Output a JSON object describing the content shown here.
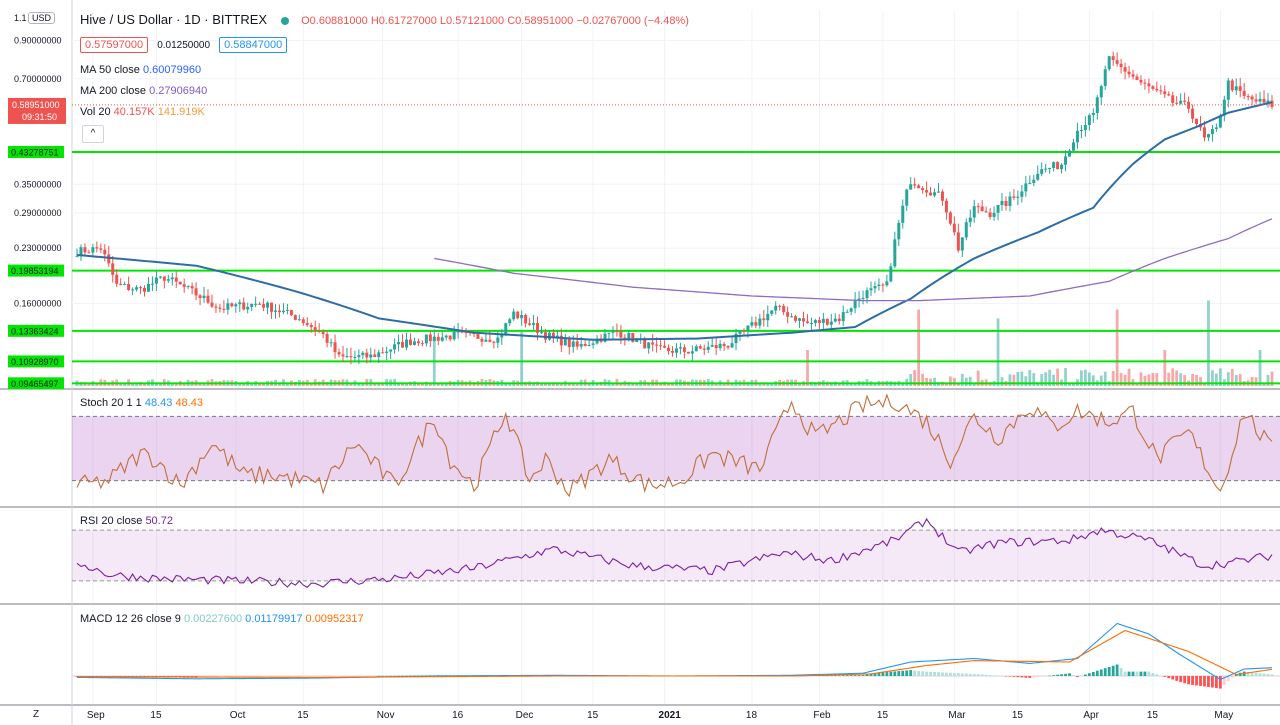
{
  "header": {
    "symbol": "Hive / US Dollar · 1D · BITTREX",
    "ohlc": "O0.60881000 H0.61727000 L0.57121000 C0.58951000 −0.02767000 (−4.48%)",
    "bid": "0.57597000",
    "spread": "0.01250000",
    "ask": "0.58847000",
    "currency": "USD",
    "scale_top": "1.1",
    "collapse": "^"
  },
  "indicators": {
    "ma50": {
      "label": "MA 50 close",
      "value": "0.60079960",
      "color": "#2962ff"
    },
    "ma200": {
      "label": "MA 200 close",
      "value": "0.27906940",
      "color": "#7e57c2"
    },
    "vol": {
      "label": "Vol 20",
      "v1": "40.157K",
      "v2": "141.919K"
    },
    "stoch": {
      "label": "Stoch 20 1 1",
      "k": "48.43",
      "d": "48.43"
    },
    "rsi": {
      "label": "RSI 20 close",
      "value": "50.72"
    },
    "macd": {
      "label": "MACD 12 26 close 9",
      "hist": "0.00227600",
      "macd": "0.01179917",
      "signal": "0.00952317"
    }
  },
  "price_axis": {
    "ticks": [
      "0.90000000",
      "0.70000000",
      "0.35000000",
      "0.29000000",
      "0.23000000",
      "0.16000000"
    ],
    "current": "0.58951000",
    "countdown": "09:31:50",
    "levels": [
      "0.43278751",
      "0.19853194",
      "0.13363424",
      "0.10928970",
      "0.09465497"
    ]
  },
  "time_axis": [
    "Sep",
    "15",
    "Oct",
    "15",
    "Nov",
    "16",
    "Dec",
    "15",
    "2021",
    "18",
    "Feb",
    "15",
    "Mar",
    "15",
    "Apr",
    "15",
    "May"
  ],
  "z_label": "Z",
  "chart_data": {
    "type": "candlestick",
    "title": "Hive / US Dollar · 1D · BITTREX",
    "x_range": [
      "Sep",
      "May"
    ],
    "y_scale": "log",
    "ylim": [
      0.093,
      1.1
    ],
    "horizontal_levels": [
      0.43278751,
      0.19853194,
      0.13363424,
      0.1092897,
      0.09465497
    ],
    "last_close": 0.58951,
    "close_anchors": [
      [
        0,
        0.225
      ],
      [
        6,
        0.23
      ],
      [
        10,
        0.18
      ],
      [
        16,
        0.175
      ],
      [
        22,
        0.19
      ],
      [
        30,
        0.17
      ],
      [
        36,
        0.155
      ],
      [
        46,
        0.16
      ],
      [
        56,
        0.145
      ],
      [
        62,
        0.13
      ],
      [
        66,
        0.112
      ],
      [
        74,
        0.113
      ],
      [
        84,
        0.125
      ],
      [
        96,
        0.13
      ],
      [
        106,
        0.127
      ],
      [
        110,
        0.15
      ],
      [
        118,
        0.13
      ],
      [
        126,
        0.12
      ],
      [
        136,
        0.133
      ],
      [
        146,
        0.118
      ],
      [
        154,
        0.117
      ],
      [
        164,
        0.122
      ],
      [
        170,
        0.138
      ],
      [
        176,
        0.155
      ],
      [
        184,
        0.14
      ],
      [
        192,
        0.145
      ],
      [
        198,
        0.17
      ],
      [
        204,
        0.18
      ],
      [
        210,
        0.36
      ],
      [
        214,
        0.34
      ],
      [
        218,
        0.32
      ],
      [
        222,
        0.23
      ],
      [
        226,
        0.3
      ],
      [
        230,
        0.29
      ],
      [
        236,
        0.32
      ],
      [
        242,
        0.38
      ],
      [
        248,
        0.4
      ],
      [
        252,
        0.5
      ],
      [
        256,
        0.55
      ],
      [
        260,
        0.79
      ],
      [
        264,
        0.74
      ],
      [
        268,
        0.68
      ],
      [
        272,
        0.64
      ],
      [
        276,
        0.6
      ],
      [
        280,
        0.58
      ],
      [
        284,
        0.47
      ],
      [
        287,
        0.5
      ],
      [
        290,
        0.68
      ],
      [
        294,
        0.62
      ],
      [
        298,
        0.6
      ],
      [
        301,
        0.59
      ]
    ],
    "ma50_anchors": [
      [
        0,
        0.22
      ],
      [
        30,
        0.205
      ],
      [
        56,
        0.172
      ],
      [
        76,
        0.145
      ],
      [
        100,
        0.132
      ],
      [
        130,
        0.126
      ],
      [
        156,
        0.127
      ],
      [
        180,
        0.132
      ],
      [
        196,
        0.137
      ],
      [
        210,
        0.165
      ],
      [
        226,
        0.215
      ],
      [
        242,
        0.255
      ],
      [
        256,
        0.3
      ],
      [
        266,
        0.4
      ],
      [
        274,
        0.47
      ],
      [
        282,
        0.51
      ],
      [
        290,
        0.56
      ],
      [
        301,
        0.6
      ]
    ],
    "ma200_anchors": [
      [
        90,
        0.215
      ],
      [
        110,
        0.195
      ],
      [
        140,
        0.178
      ],
      [
        170,
        0.168
      ],
      [
        198,
        0.163
      ],
      [
        212,
        0.163
      ],
      [
        240,
        0.168
      ],
      [
        260,
        0.185
      ],
      [
        274,
        0.215
      ],
      [
        290,
        0.245
      ],
      [
        301,
        0.279
      ]
    ],
    "volume_spikes": [
      [
        90,
        0.55
      ],
      [
        112,
        0.6
      ],
      [
        184,
        0.4
      ],
      [
        212,
        0.85
      ],
      [
        232,
        0.75
      ],
      [
        262,
        0.85
      ],
      [
        274,
        0.4
      ],
      [
        285,
        0.95
      ],
      [
        298,
        0.4
      ]
    ],
    "stoch_anchors": [
      [
        0,
        15
      ],
      [
        8,
        20
      ],
      [
        16,
        45
      ],
      [
        20,
        40
      ],
      [
        26,
        15
      ],
      [
        34,
        55
      ],
      [
        42,
        25
      ],
      [
        50,
        25
      ],
      [
        62,
        15
      ],
      [
        70,
        55
      ],
      [
        80,
        15
      ],
      [
        90,
        80
      ],
      [
        94,
        40
      ],
      [
        100,
        15
      ],
      [
        108,
        85
      ],
      [
        114,
        20
      ],
      [
        118,
        40
      ],
      [
        124,
        10
      ],
      [
        134,
        40
      ],
      [
        144,
        15
      ],
      [
        152,
        20
      ],
      [
        160,
        45
      ],
      [
        172,
        30
      ],
      [
        180,
        95
      ],
      [
        186,
        60
      ],
      [
        198,
        90
      ],
      [
        206,
        95
      ],
      [
        214,
        75
      ],
      [
        220,
        40
      ],
      [
        226,
        80
      ],
      [
        232,
        60
      ],
      [
        240,
        90
      ],
      [
        246,
        70
      ],
      [
        252,
        85
      ],
      [
        260,
        75
      ],
      [
        266,
        85
      ],
      [
        272,
        40
      ],
      [
        280,
        65
      ],
      [
        288,
        10
      ],
      [
        294,
        85
      ],
      [
        301,
        48
      ]
    ],
    "stoch_band": [
      20,
      80
    ],
    "rsi_anchors": [
      [
        0,
        45
      ],
      [
        8,
        35
      ],
      [
        20,
        32
      ],
      [
        40,
        30
      ],
      [
        60,
        28
      ],
      [
        80,
        32
      ],
      [
        100,
        40
      ],
      [
        120,
        55
      ],
      [
        140,
        42
      ],
      [
        160,
        38
      ],
      [
        178,
        52
      ],
      [
        190,
        46
      ],
      [
        206,
        62
      ],
      [
        214,
        78
      ],
      [
        222,
        52
      ],
      [
        232,
        60
      ],
      [
        250,
        62
      ],
      [
        258,
        70
      ],
      [
        270,
        62
      ],
      [
        284,
        42
      ],
      [
        292,
        45
      ],
      [
        301,
        50
      ]
    ],
    "rsi_band": [
      30,
      70
    ],
    "macd_anchors": [
      [
        0,
        -0.002
      ],
      [
        30,
        -0.004
      ],
      [
        60,
        -0.003
      ],
      [
        90,
        0.0
      ],
      [
        120,
        0.001
      ],
      [
        150,
        0.0
      ],
      [
        180,
        0.001
      ],
      [
        198,
        0.004
      ],
      [
        210,
        0.02
      ],
      [
        226,
        0.025
      ],
      [
        240,
        0.018
      ],
      [
        252,
        0.025
      ],
      [
        262,
        0.075
      ],
      [
        270,
        0.06
      ],
      [
        278,
        0.03
      ],
      [
        288,
        -0.005
      ],
      [
        294,
        0.01
      ],
      [
        301,
        0.0118
      ]
    ],
    "signal_anchors": [
      [
        0,
        -0.001
      ],
      [
        60,
        -0.002
      ],
      [
        120,
        0.0
      ],
      [
        180,
        0.0
      ],
      [
        200,
        0.003
      ],
      [
        214,
        0.015
      ],
      [
        226,
        0.022
      ],
      [
        250,
        0.02
      ],
      [
        264,
        0.065
      ],
      [
        280,
        0.035
      ],
      [
        292,
        0.002
      ],
      [
        301,
        0.0095
      ]
    ],
    "colors": {
      "up": "#26a69a",
      "down": "#ef5350",
      "level": "#00e600",
      "stoch_k": "#bf6f3c",
      "rsi": "#7b1fa2",
      "macd": "#2196f3",
      "signal": "#ff6d00"
    }
  }
}
